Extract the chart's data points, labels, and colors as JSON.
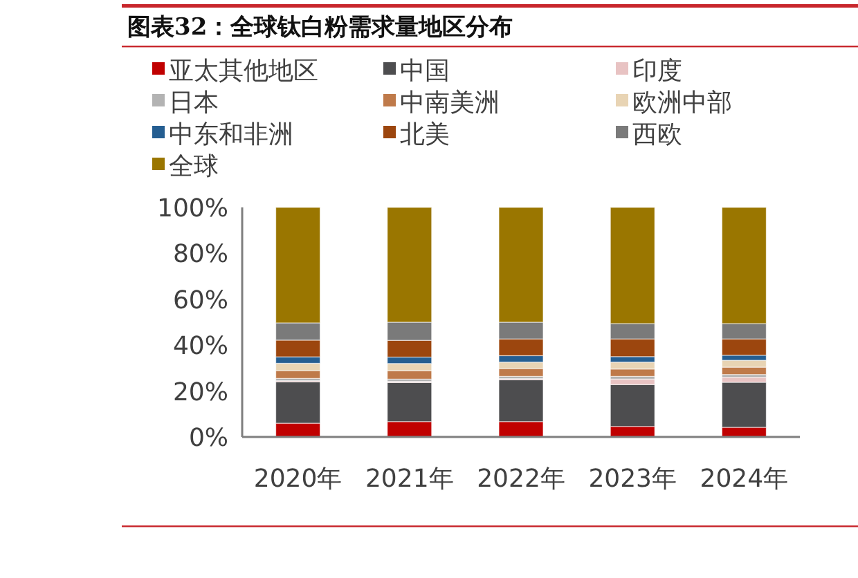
{
  "chart_data": {
    "type": "bar",
    "title": "图表32：全球钛白粉需求量地区分布",
    "stacked": true,
    "legend": "top",
    "grid": false,
    "categories": [
      "2020年",
      "2021年",
      "2022年",
      "2023年",
      "2024年"
    ],
    "ylim": [
      0,
      100
    ],
    "yticks": [
      {
        "value": 0,
        "label": "0%"
      },
      {
        "value": 20,
        "label": "20%"
      },
      {
        "value": 40,
        "label": "40%"
      },
      {
        "value": 60,
        "label": "60%"
      },
      {
        "value": 80,
        "label": "80%"
      },
      {
        "value": 100,
        "label": "100%"
      }
    ],
    "series": [
      {
        "name": "亚太其他地区",
        "color": "#c00000",
        "values": [
          6,
          6.7,
          6.7,
          4.6,
          4.2
        ]
      },
      {
        "name": "中国",
        "color": "#4d4d4f",
        "values": [
          18,
          17,
          18.2,
          18.2,
          19.6
        ]
      },
      {
        "name": "印度",
        "color": "#e8c3c3",
        "values": [
          0.5,
          0.5,
          0.5,
          2.4,
          2.2
        ]
      },
      {
        "name": "日本",
        "color": "#b3b3b3",
        "values": [
          1,
          1,
          1,
          1.2,
          1.2
        ]
      },
      {
        "name": "中南美洲",
        "color": "#bf7a4a",
        "values": [
          3.4,
          3.6,
          3.4,
          3.2,
          3.2
        ]
      },
      {
        "name": "欧洲中部",
        "color": "#e8d4b4",
        "values": [
          3.2,
          3.2,
          2.8,
          3,
          3
        ]
      },
      {
        "name": "中东和非洲",
        "color": "#255e91",
        "values": [
          2.8,
          2.8,
          2.8,
          2.4,
          2.2
        ]
      },
      {
        "name": "北美",
        "color": "#9c460e",
        "values": [
          7.3,
          7.3,
          7.3,
          7.7,
          7.1
        ]
      },
      {
        "name": "西欧",
        "color": "#7a7a7a",
        "values": [
          7.5,
          7.9,
          7.3,
          6.7,
          6.7
        ]
      },
      {
        "name": "全球",
        "color": "#9a7600",
        "values": [
          50.3,
          50,
          50,
          50.6,
          50.6
        ]
      }
    ]
  }
}
